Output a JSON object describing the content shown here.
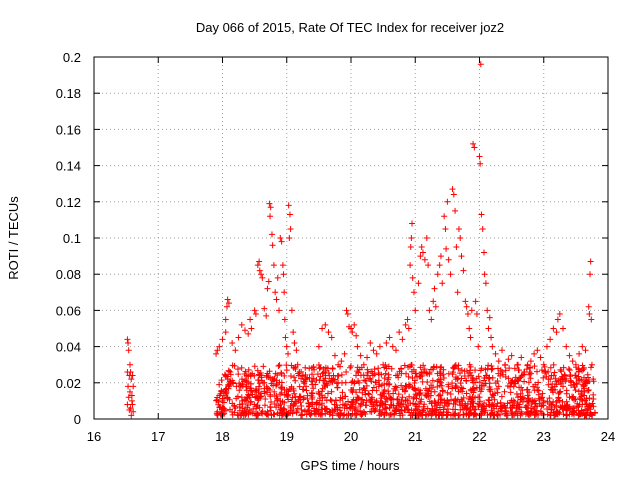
{
  "chart_data": {
    "type": "scatter",
    "title": "Day 066 of 2015, Rate Of TEC Index for receiver joz2",
    "xlabel": "GPS time / hours",
    "ylabel": "ROTI / TECUs",
    "xlim": [
      16,
      24
    ],
    "ylim": [
      0,
      0.2
    ],
    "x_ticks": [
      16,
      17,
      18,
      19,
      20,
      21,
      22,
      23,
      24
    ],
    "x_tick_labels": [
      "16",
      "17",
      "18",
      "19",
      "20",
      "21",
      "22",
      "23",
      "24"
    ],
    "y_ticks": [
      0,
      0.02,
      0.04,
      0.06,
      0.08,
      0.1,
      0.12,
      0.14,
      0.16,
      0.18,
      0.2
    ],
    "y_tick_labels": [
      "0",
      "0.02",
      "0.04",
      "0.06",
      "0.08",
      "0.1",
      "0.12",
      "0.14",
      "0.16",
      "0.18",
      "0.2"
    ],
    "grid": true,
    "marker": "+",
    "color": "#ff0000",
    "series": [
      {
        "name": "ROTI",
        "points": [
          [
            16.52,
            0.044
          ],
          [
            16.53,
            0.042
          ],
          [
            16.54,
            0.038
          ],
          [
            16.52,
            0.026
          ],
          [
            16.55,
            0.024
          ],
          [
            16.53,
            0.018
          ],
          [
            16.54,
            0.012
          ],
          [
            16.52,
            0.008
          ],
          [
            16.55,
            0.005
          ],
          [
            16.57,
            0.026
          ],
          [
            16.58,
            0.022
          ],
          [
            16.56,
            0.015
          ],
          [
            16.59,
            0.01
          ],
          [
            16.57,
            0.006
          ],
          [
            16.6,
            0.024
          ],
          [
            16.61,
            0.018
          ],
          [
            16.59,
            0.013
          ],
          [
            16.6,
            0.008
          ],
          [
            16.61,
            0.004
          ],
          [
            16.56,
            0.03
          ],
          [
            16.58,
            0.002
          ],
          [
            17.9,
            0.036
          ],
          [
            17.92,
            0.038
          ],
          [
            17.95,
            0.04
          ],
          [
            18.0,
            0.044
          ],
          [
            18.05,
            0.048
          ],
          [
            18.07,
            0.062
          ],
          [
            18.08,
            0.066
          ],
          [
            18.1,
            0.064
          ],
          [
            18.05,
            0.055
          ],
          [
            18.15,
            0.042
          ],
          [
            18.2,
            0.038
          ],
          [
            18.25,
            0.045
          ],
          [
            18.3,
            0.052
          ],
          [
            18.35,
            0.049
          ],
          [
            18.4,
            0.047
          ],
          [
            18.43,
            0.055
          ],
          [
            18.45,
            0.05
          ],
          [
            18.5,
            0.06
          ],
          [
            18.52,
            0.058
          ],
          [
            18.55,
            0.085
          ],
          [
            18.57,
            0.087
          ],
          [
            18.58,
            0.082
          ],
          [
            18.6,
            0.08
          ],
          [
            18.62,
            0.078
          ],
          [
            18.65,
            0.061
          ],
          [
            18.68,
            0.057
          ],
          [
            18.7,
            0.072
          ],
          [
            18.72,
            0.076
          ],
          [
            18.73,
            0.119
          ],
          [
            18.75,
            0.117
          ],
          [
            18.74,
            0.112
          ],
          [
            18.77,
            0.102
          ],
          [
            18.78,
            0.096
          ],
          [
            18.8,
            0.085
          ],
          [
            18.82,
            0.07
          ],
          [
            18.84,
            0.066
          ],
          [
            18.86,
            0.078
          ],
          [
            18.88,
            0.06
          ],
          [
            18.9,
            0.1
          ],
          [
            18.92,
            0.098
          ],
          [
            18.94,
            0.085
          ],
          [
            18.95,
            0.08
          ],
          [
            18.96,
            0.07
          ],
          [
            18.97,
            0.055
          ],
          [
            18.98,
            0.045
          ],
          [
            19.0,
            0.04
          ],
          [
            19.02,
            0.036
          ],
          [
            19.03,
            0.118
          ],
          [
            19.05,
            0.113
          ],
          [
            19.06,
            0.105
          ],
          [
            19.04,
            0.1
          ],
          [
            19.08,
            0.06
          ],
          [
            19.1,
            0.048
          ],
          [
            19.12,
            0.042
          ],
          [
            19.15,
            0.038
          ],
          [
            19.17,
            0.03
          ],
          [
            19.2,
            0.026
          ],
          [
            19.25,
            0.024
          ],
          [
            19.3,
            0.022
          ],
          [
            19.35,
            0.028
          ],
          [
            19.5,
            0.04
          ],
          [
            19.55,
            0.05
          ],
          [
            19.6,
            0.052
          ],
          [
            19.65,
            0.048
          ],
          [
            19.7,
            0.045
          ],
          [
            19.75,
            0.035
          ],
          [
            19.8,
            0.03
          ],
          [
            19.85,
            0.032
          ],
          [
            19.9,
            0.036
          ],
          [
            19.93,
            0.06
          ],
          [
            19.95,
            0.058
          ],
          [
            19.97,
            0.051
          ],
          [
            20.0,
            0.05
          ],
          [
            20.02,
            0.048
          ],
          [
            20.05,
            0.052
          ],
          [
            20.08,
            0.046
          ],
          [
            20.1,
            0.04
          ],
          [
            20.15,
            0.035
          ],
          [
            20.2,
            0.03
          ],
          [
            20.25,
            0.034
          ],
          [
            20.3,
            0.042
          ],
          [
            20.35,
            0.038
          ],
          [
            20.4,
            0.036
          ],
          [
            20.45,
            0.04
          ],
          [
            20.5,
            0.03
          ],
          [
            20.55,
            0.042
          ],
          [
            20.6,
            0.045
          ],
          [
            20.65,
            0.04
          ],
          [
            20.7,
            0.038
          ],
          [
            20.75,
            0.048
          ],
          [
            20.8,
            0.044
          ],
          [
            20.85,
            0.052
          ],
          [
            20.88,
            0.055
          ],
          [
            20.9,
            0.05
          ],
          [
            20.92,
            0.085
          ],
          [
            20.93,
            0.095
          ],
          [
            20.94,
            0.1
          ],
          [
            20.95,
            0.108
          ],
          [
            20.96,
            0.078
          ],
          [
            20.98,
            0.07
          ],
          [
            21.0,
            0.06
          ],
          [
            21.05,
            0.075
          ],
          [
            21.08,
            0.09
          ],
          [
            21.1,
            0.095
          ],
          [
            21.12,
            0.092
          ],
          [
            21.15,
            0.088
          ],
          [
            21.18,
            0.1
          ],
          [
            21.2,
            0.085
          ],
          [
            21.22,
            0.06
          ],
          [
            21.25,
            0.055
          ],
          [
            21.28,
            0.065
          ],
          [
            21.3,
            0.072
          ],
          [
            21.32,
            0.062
          ],
          [
            21.35,
            0.08
          ],
          [
            21.38,
            0.085
          ],
          [
            21.4,
            0.09
          ],
          [
            21.42,
            0.075
          ],
          [
            21.45,
            0.112
          ],
          [
            21.47,
            0.105
          ],
          [
            21.48,
            0.094
          ],
          [
            21.5,
            0.12
          ],
          [
            21.52,
            0.088
          ],
          [
            21.55,
            0.08
          ],
          [
            21.58,
            0.127
          ],
          [
            21.6,
            0.124
          ],
          [
            21.62,
            0.115
          ],
          [
            21.64,
            0.095
          ],
          [
            21.66,
            0.07
          ],
          [
            21.68,
            0.105
          ],
          [
            21.7,
            0.1
          ],
          [
            21.72,
            0.09
          ],
          [
            21.75,
            0.082
          ],
          [
            21.78,
            0.065
          ],
          [
            21.8,
            0.062
          ],
          [
            21.82,
            0.058
          ],
          [
            21.84,
            0.05
          ],
          [
            21.86,
            0.045
          ],
          [
            21.88,
            0.06
          ],
          [
            21.9,
            0.152
          ],
          [
            21.92,
            0.15
          ],
          [
            21.94,
            0.065
          ],
          [
            21.96,
            0.058
          ],
          [
            21.98,
            0.04
          ],
          [
            22.0,
            0.145
          ],
          [
            22.01,
            0.141
          ],
          [
            22.02,
            0.196
          ],
          [
            22.03,
            0.113
          ],
          [
            22.05,
            0.105
          ],
          [
            22.07,
            0.092
          ],
          [
            22.08,
            0.08
          ],
          [
            22.1,
            0.075
          ],
          [
            22.12,
            0.06
          ],
          [
            22.14,
            0.05
          ],
          [
            22.16,
            0.056
          ],
          [
            22.18,
            0.045
          ],
          [
            22.2,
            0.04
          ],
          [
            22.25,
            0.036
          ],
          [
            22.3,
            0.032
          ],
          [
            22.35,
            0.038
          ],
          [
            22.4,
            0.03
          ],
          [
            22.45,
            0.033
          ],
          [
            22.5,
            0.035
          ],
          [
            22.55,
            0.028
          ],
          [
            22.6,
            0.03
          ],
          [
            22.65,
            0.034
          ],
          [
            22.7,
            0.026
          ],
          [
            22.75,
            0.03
          ],
          [
            22.8,
            0.032
          ],
          [
            22.85,
            0.036
          ],
          [
            22.9,
            0.038
          ],
          [
            22.95,
            0.034
          ],
          [
            23.0,
            0.03
          ],
          [
            23.05,
            0.04
          ],
          [
            23.1,
            0.044
          ],
          [
            23.15,
            0.05
          ],
          [
            23.2,
            0.048
          ],
          [
            23.22,
            0.055
          ],
          [
            23.25,
            0.058
          ],
          [
            23.3,
            0.05
          ],
          [
            23.35,
            0.04
          ],
          [
            23.4,
            0.035
          ],
          [
            23.45,
            0.032
          ],
          [
            23.5,
            0.03
          ],
          [
            23.55,
            0.036
          ],
          [
            23.6,
            0.04
          ],
          [
            23.65,
            0.038
          ],
          [
            23.7,
            0.062
          ],
          [
            23.71,
            0.058
          ],
          [
            23.72,
            0.08
          ],
          [
            23.73,
            0.087
          ],
          [
            23.74,
            0.055
          ],
          [
            23.75,
            0.03
          ],
          [
            17.92,
            0.004
          ],
          [
            18.0,
            0.01
          ],
          [
            18.1,
            0.018
          ],
          [
            18.2,
            0.006
          ],
          [
            18.3,
            0.012
          ],
          [
            18.4,
            0.02
          ],
          [
            18.5,
            0.008
          ],
          [
            18.6,
            0.014
          ],
          [
            18.7,
            0.004
          ],
          [
            18.8,
            0.022
          ],
          [
            18.9,
            0.01
          ],
          [
            19.0,
            0.016
          ],
          [
            19.1,
            0.005
          ],
          [
            19.2,
            0.012
          ],
          [
            19.3,
            0.018
          ],
          [
            19.4,
            0.008
          ],
          [
            19.5,
            0.014
          ],
          [
            19.6,
            0.003
          ],
          [
            19.7,
            0.01
          ],
          [
            19.8,
            0.02
          ],
          [
            19.9,
            0.006
          ],
          [
            20.0,
            0.016
          ],
          [
            20.1,
            0.012
          ],
          [
            20.2,
            0.004
          ],
          [
            20.3,
            0.022
          ],
          [
            20.4,
            0.01
          ],
          [
            20.5,
            0.014
          ],
          [
            20.6,
            0.006
          ],
          [
            20.7,
            0.024
          ],
          [
            20.8,
            0.012
          ],
          [
            20.9,
            0.018
          ],
          [
            21.0,
            0.008
          ],
          [
            21.1,
            0.026
          ],
          [
            21.2,
            0.014
          ],
          [
            21.3,
            0.004
          ],
          [
            21.4,
            0.02
          ],
          [
            21.5,
            0.01
          ],
          [
            21.6,
            0.028
          ],
          [
            21.7,
            0.016
          ],
          [
            21.8,
            0.006
          ],
          [
            21.9,
            0.022
          ],
          [
            22.0,
            0.012
          ],
          [
            22.1,
            0.024
          ],
          [
            22.2,
            0.008
          ],
          [
            22.3,
            0.018
          ],
          [
            22.4,
            0.004
          ],
          [
            22.5,
            0.02
          ],
          [
            22.6,
            0.012
          ],
          [
            22.7,
            0.026
          ],
          [
            22.8,
            0.006
          ],
          [
            22.9,
            0.016
          ],
          [
            23.0,
            0.01
          ],
          [
            23.1,
            0.022
          ],
          [
            23.2,
            0.004
          ],
          [
            23.3,
            0.018
          ],
          [
            23.4,
            0.012
          ],
          [
            23.5,
            0.024
          ],
          [
            23.6,
            0.008
          ],
          [
            23.7,
            0.016
          ],
          [
            23.75,
            0.002
          ]
        ]
      }
    ],
    "dense_band": {
      "description": "dense low-value cluster of the same series",
      "x_range": [
        17.9,
        23.8
      ],
      "y_range": [
        0.002,
        0.03
      ],
      "x_gap": [
        17.0,
        17.9
      ],
      "approx_points": 1500
    }
  }
}
